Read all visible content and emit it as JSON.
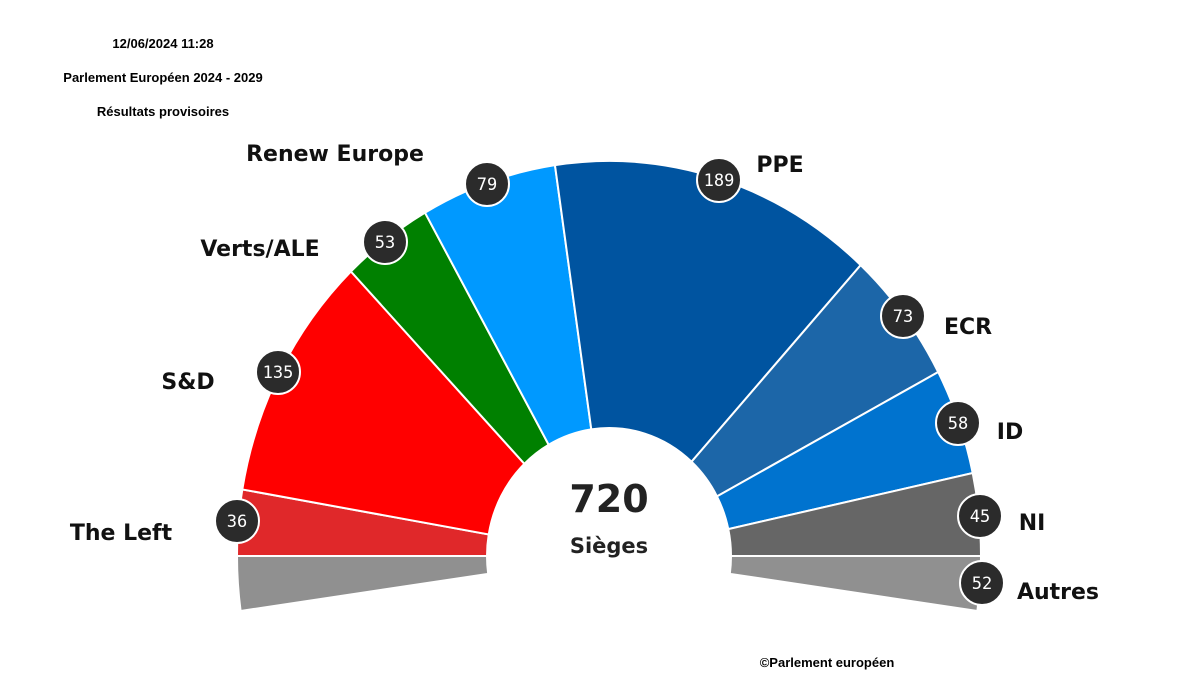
{
  "header": {
    "datetime": "12/06/2024  11:28",
    "title": "Parlement Européen 2024 - 2029",
    "subtitle": "Résultats provisoires"
  },
  "credit": "©Parlement européen",
  "chart_data": {
    "type": "parliament-hemicycle",
    "title": "Parlement Européen 2024 - 2029",
    "total": "720",
    "total_label": "Sièges",
    "series": [
      {
        "name": "The Left",
        "value": 36,
        "color": "#e0282a"
      },
      {
        "name": "S&D",
        "value": 135,
        "color": "#ff0000"
      },
      {
        "name": "Verts/ALE",
        "value": 53,
        "color": "#008000"
      },
      {
        "name": "Renew Europe",
        "value": 79,
        "color": "#0099ff"
      },
      {
        "name": "PPE",
        "value": 189,
        "color": "#0054a0"
      },
      {
        "name": "ECR",
        "value": 73,
        "color": "#1c66a8"
      },
      {
        "name": "ID",
        "value": 58,
        "color": "#0073cf"
      },
      {
        "name": "NI",
        "value": 45,
        "color": "#666666"
      },
      {
        "name": "Autres",
        "value": 52,
        "color": "#909090"
      }
    ]
  }
}
